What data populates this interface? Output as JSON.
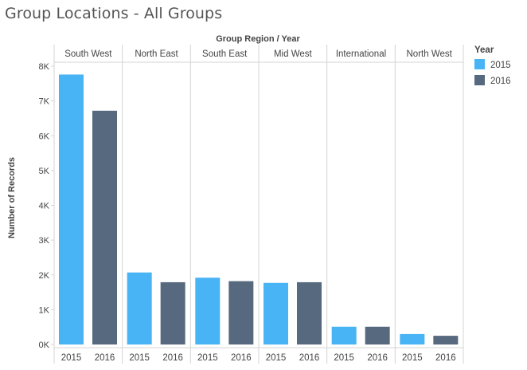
{
  "page": {
    "title": "Group Locations - All Groups"
  },
  "colors": {
    "2015": "#48b3f5",
    "2016": "#56697e",
    "divider": "#d4d4d4",
    "tick_text": "#555555"
  },
  "chart_data": {
    "type": "bar",
    "title": "Group Locations - All Groups",
    "column_header": "Group Region  /  Year",
    "ylabel": "Number of Records",
    "ylim": [
      0,
      8000
    ],
    "yticks": [
      0,
      1000,
      2000,
      3000,
      4000,
      5000,
      6000,
      7000,
      8000
    ],
    "ytick_labels": [
      "0K",
      "1K",
      "2K",
      "3K",
      "4K",
      "5K",
      "6K",
      "7K",
      "8K"
    ],
    "legend": {
      "title": "Year",
      "position": "top-right",
      "items": [
        {
          "label": "2015",
          "color": "#48b3f5"
        },
        {
          "label": "2016",
          "color": "#56697e"
        }
      ]
    },
    "groups": [
      {
        "name": "South West",
        "categories": [
          "2015",
          "2016"
        ],
        "values": [
          7760,
          6720
        ]
      },
      {
        "name": "North East",
        "categories": [
          "2015",
          "2016"
        ],
        "values": [
          2070,
          1790
        ]
      },
      {
        "name": "South East",
        "categories": [
          "2015",
          "2016"
        ],
        "values": [
          1920,
          1820
        ]
      },
      {
        "name": "Mid West",
        "categories": [
          "2015",
          "2016"
        ],
        "values": [
          1770,
          1790
        ]
      },
      {
        "name": "International",
        "categories": [
          "2015",
          "2016"
        ],
        "values": [
          510,
          510
        ]
      },
      {
        "name": "North West",
        "categories": [
          "2015",
          "2016"
        ],
        "values": [
          300,
          250
        ]
      }
    ],
    "grid": false
  }
}
